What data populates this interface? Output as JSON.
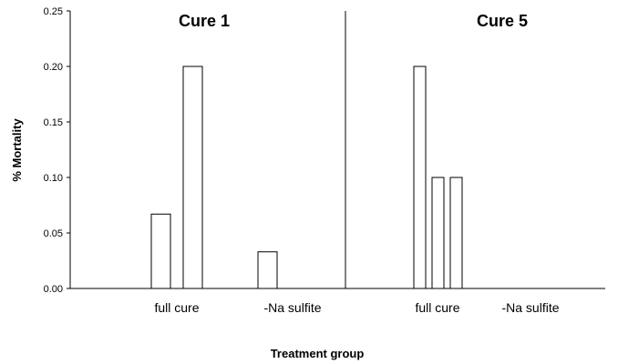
{
  "chart_data": {
    "type": "bar",
    "title": "",
    "xlabel": "Treatment group",
    "ylabel": "% Mortality",
    "ylim": [
      0,
      0.25
    ],
    "yticks": [
      "0.00",
      "0.05",
      "0.10",
      "0.15",
      "0.20",
      "0.25"
    ],
    "grid": false,
    "panels": [
      {
        "title": "Cure 1",
        "groups": [
          {
            "label": "full cure",
            "values": [
              0.067,
              0.2
            ]
          },
          {
            "label": "-Na sulfite",
            "values": [
              0.033
            ]
          }
        ]
      },
      {
        "title": "Cure 5",
        "groups": [
          {
            "label": "full cure",
            "values": [
              0.2,
              0.1,
              0.1
            ]
          },
          {
            "label": "-Na sulfite",
            "values": []
          }
        ]
      }
    ]
  }
}
